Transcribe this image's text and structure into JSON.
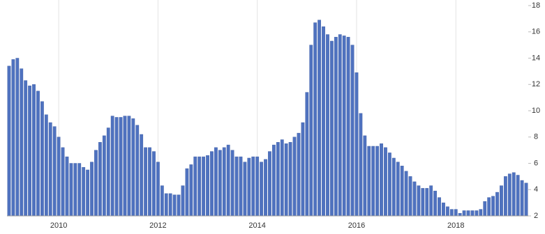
{
  "chart_data": {
    "type": "bar",
    "categories": [
      null,
      null,
      null,
      null,
      null,
      null,
      null,
      null,
      null,
      null,
      null,
      null,
      "2010",
      null,
      null,
      null,
      null,
      null,
      null,
      null,
      null,
      null,
      null,
      null,
      null,
      null,
      null,
      null,
      null,
      null,
      null,
      null,
      null,
      null,
      null,
      null,
      "2012",
      null,
      null,
      null,
      null,
      null,
      null,
      null,
      null,
      null,
      null,
      null,
      null,
      null,
      null,
      null,
      null,
      null,
      null,
      null,
      null,
      null,
      null,
      null,
      "2014",
      null,
      null,
      null,
      null,
      null,
      null,
      null,
      null,
      null,
      null,
      null,
      null,
      null,
      null,
      null,
      null,
      null,
      null,
      null,
      null,
      null,
      null,
      null,
      "2016",
      null,
      null,
      null,
      null,
      null,
      null,
      null,
      null,
      null,
      null,
      null,
      null,
      null,
      null,
      null,
      null,
      null,
      null,
      null,
      null,
      null,
      null,
      null,
      "2018",
      null,
      null,
      null,
      null,
      null,
      null,
      null,
      null,
      null,
      null,
      null,
      null,
      null,
      null,
      null,
      null,
      null
    ],
    "values": [
      13.4,
      13.9,
      14.0,
      13.2,
      12.3,
      11.9,
      12.0,
      11.5,
      10.7,
      9.7,
      9.1,
      8.8,
      8.0,
      7.2,
      6.5,
      6.0,
      6.0,
      6.0,
      5.7,
      5.5,
      6.1,
      7.0,
      7.6,
      8.1,
      8.7,
      9.6,
      9.5,
      9.5,
      9.6,
      9.6,
      9.4,
      8.9,
      8.2,
      7.2,
      7.2,
      6.9,
      6.1,
      4.3,
      3.7,
      3.7,
      3.6,
      3.6,
      4.3,
      5.6,
      5.9,
      6.5,
      6.5,
      6.5,
      6.6,
      6.9,
      7.2,
      7.0,
      7.2,
      7.4,
      7.0,
      6.5,
      6.5,
      6.1,
      6.4,
      6.5,
      6.5,
      6.1,
      6.3,
      6.9,
      7.4,
      7.6,
      7.8,
      7.5,
      7.6,
      8.0,
      8.3,
      9.1,
      11.4,
      15.0,
      16.7,
      16.9,
      16.4,
      15.8,
      15.3,
      15.6,
      15.8,
      15.7,
      15.6,
      15.0,
      12.9,
      9.8,
      8.1,
      7.3,
      7.3,
      7.3,
      7.5,
      7.2,
      6.8,
      6.4,
      6.1,
      5.8,
      5.4,
      5.0,
      4.6,
      4.3,
      4.1,
      4.1,
      4.3,
      3.9,
      3.4,
      3.0,
      2.7,
      2.5,
      2.5,
      2.2,
      2.4,
      2.4,
      2.4,
      2.4,
      2.5,
      3.1,
      3.4,
      3.5,
      3.8,
      4.3,
      5.0,
      5.2,
      5.3,
      5.1,
      4.7,
      4.5
    ],
    "color": "#4f72bf",
    "ylim": [
      2,
      18
    ],
    "yticks": [
      2,
      4,
      6,
      8,
      10,
      12,
      14,
      16,
      18
    ],
    "grid": true
  }
}
